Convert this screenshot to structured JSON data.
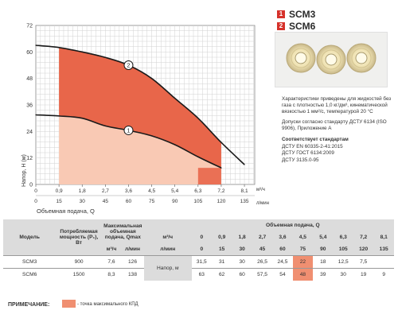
{
  "chart_data": {
    "type": "line",
    "x_flow": [
      0,
      0.9,
      1.8,
      2.7,
      3.6,
      4.5,
      5.4,
      6.3,
      7.2,
      8.1
    ],
    "x_flow_ticks": [
      "0",
      "0,9",
      "1,8",
      "2,7",
      "3,6",
      "4,5",
      "5,4",
      "6,3",
      "7,2",
      "8,1"
    ],
    "x_flow_unit": "м³/ч",
    "x_lpm_ticks": [
      "0",
      "15",
      "30",
      "45",
      "60",
      "75",
      "90",
      "105",
      "120",
      "135"
    ],
    "x_lpm_unit": "л/мин",
    "xlabel": "Объемная подача, Q",
    "ylabel": "Напор, H (м)",
    "ylim": [
      0,
      72
    ],
    "y_ticks": [
      "0",
      "12",
      "24",
      "36",
      "48",
      "60",
      "72"
    ],
    "xlim": [
      0,
      8.5
    ],
    "series": [
      {
        "name": "SCM3",
        "marker": "1",
        "x": [
          0,
          0.9,
          1.8,
          2.7,
          3.6,
          4.5,
          5.4,
          6.3,
          7.2,
          8.1
        ],
        "values": [
          31.5,
          31,
          30,
          26.5,
          24.5,
          22,
          18,
          12.5,
          7.5,
          0
        ],
        "fill_color": "#f9c9b4",
        "efficiency_zone": [
          6.3,
          7.2
        ]
      },
      {
        "name": "SCM6",
        "marker": "2",
        "x": [
          0,
          0.9,
          1.8,
          2.7,
          3.6,
          4.5,
          5.4,
          6.3,
          7.2,
          8.1
        ],
        "values": [
          63,
          62,
          60,
          57.5,
          54,
          48,
          39,
          30,
          19,
          9
        ],
        "fill_color": "#e8664a"
      }
    ],
    "grid": true
  },
  "legend": [
    {
      "num": "1",
      "label": "SCM3"
    },
    {
      "num": "2",
      "label": "SCM6"
    }
  ],
  "notes": {
    "p1": "Характеристики приведены для жидкостей без газа с плотностью 1,0 кг/дм³, кинематической вязкостью 1 мм²/с, температурой 20 °С",
    "p2": "Допуски согласно стандарту ДСТУ 6134 (ISO 9906), Приложение А",
    "std_title": "Соответствует стандартам",
    "std1": "ДСТУ EN 60335-2-41:2015",
    "std2": "ДСТУ ГОСТ 6134:2009",
    "std3": "ДСТУ 3135.0-95"
  },
  "table": {
    "h_model": "Модель",
    "h_power": "Потребляемая мощность (P₁), Вт",
    "h_maxflow": "Максимальная объемная подача, Qmax",
    "h_flow": "Объемная подача, Q",
    "unit_m3h": "м³/ч",
    "unit_lpm": "л/мин",
    "head_label": "Напор, м",
    "q_m3h": [
      "0",
      "0,9",
      "1,8",
      "2,7",
      "3,6",
      "4,5",
      "5,4",
      "6,3",
      "7,2",
      "8,1"
    ],
    "q_lpm": [
      "0",
      "15",
      "30",
      "45",
      "60",
      "75",
      "90",
      "105",
      "120",
      "135"
    ],
    "rows": [
      {
        "model": "SCM3",
        "power": "900",
        "q_m3h": "7,6",
        "q_lpm": "126",
        "heads": [
          "31,5",
          "31",
          "30",
          "26,5",
          "24,5",
          "22",
          "18",
          "12,5",
          "7,5",
          ""
        ]
      },
      {
        "model": "SCM6",
        "power": "1500",
        "q_m3h": "8,3",
        "q_lpm": "138",
        "heads": [
          "63",
          "62",
          "60",
          "57,5",
          "54",
          "48",
          "39",
          "30",
          "19",
          "9"
        ]
      }
    ],
    "eff_index": 5
  },
  "note": {
    "label": "ПРИМЕЧАНИЕ:",
    "text": "- точка максимального КПД"
  }
}
